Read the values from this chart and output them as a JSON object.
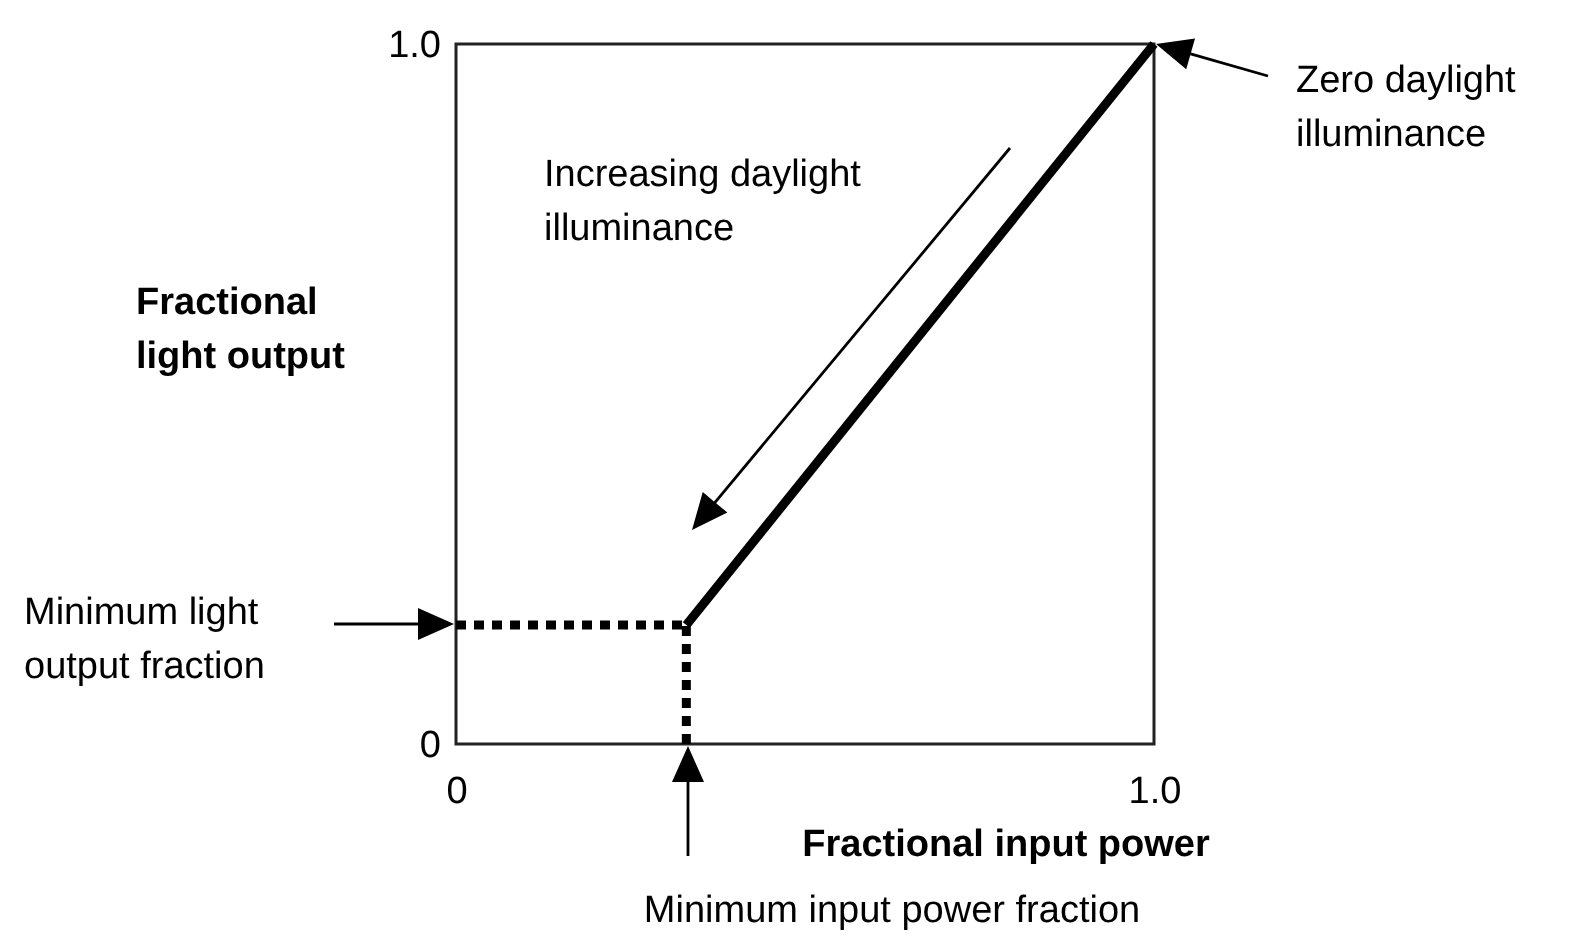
{
  "chart_data": {
    "type": "line",
    "xlabel": "Fractional input power",
    "ylabel": "Fractional light output",
    "xlim": [
      0,
      1
    ],
    "ylim": [
      0,
      1
    ],
    "xticks": [
      0,
      {
        "value": 1,
        "label": "1.0"
      }
    ],
    "yticks": [
      0,
      {
        "value": 1,
        "label": "1.0"
      }
    ],
    "series": [
      {
        "color": "#000000",
        "line_style": "solid",
        "x": [
          0.33,
          1
        ],
        "values": [
          0.17,
          1
        ]
      },
      {
        "color": "#000000",
        "line_style": "dotted",
        "x": [
          0,
          0.33
        ],
        "values": [
          0.17,
          0.17
        ]
      },
      {
        "color": "#000000",
        "line_style": "dotted",
        "x": [
          0.33,
          0.33
        ],
        "values": [
          0,
          0.17
        ]
      }
    ],
    "annotations": [
      "Zero daylight illuminance",
      "Increasing daylight illuminance",
      "Minimum light output fraction",
      "Minimum input power fraction"
    ]
  }
}
